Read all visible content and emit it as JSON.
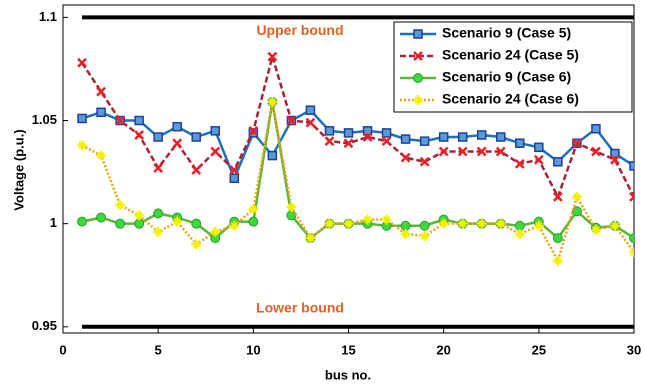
{
  "chart_data": {
    "type": "line",
    "xlabel": "bus no.",
    "ylabel": "Voltage (p.u.)",
    "annotations": [
      "Upper bound",
      "Lower bound"
    ],
    "bounds": [
      1.1,
      0.95
    ],
    "x": [
      1,
      2,
      3,
      4,
      5,
      6,
      7,
      8,
      9,
      10,
      11,
      12,
      13,
      14,
      15,
      16,
      17,
      18,
      19,
      20,
      21,
      22,
      23,
      24,
      25,
      26,
      27,
      28,
      29,
      30
    ],
    "series": [
      {
        "name": "Scenario 9 (Case 5)",
        "color": "#1f6fbf",
        "marker": "square",
        "values": [
          1.051,
          1.054,
          1.05,
          1.05,
          1.042,
          1.047,
          1.042,
          1.045,
          1.022,
          1.044,
          1.033,
          1.05,
          1.055,
          1.045,
          1.044,
          1.045,
          1.044,
          1.041,
          1.04,
          1.042,
          1.042,
          1.043,
          1.042,
          1.039,
          1.037,
          1.03,
          1.039,
          1.046,
          1.034,
          1.028
        ]
      },
      {
        "name": "Scenario 24 (Case 5)",
        "color": "#a5243a",
        "marker": "x",
        "values": [
          1.078,
          1.064,
          1.05,
          1.043,
          1.027,
          1.039,
          1.026,
          1.035,
          1.026,
          1.045,
          1.081,
          1.05,
          1.049,
          1.04,
          1.039,
          1.042,
          1.04,
          1.032,
          1.03,
          1.035,
          1.035,
          1.035,
          1.035,
          1.029,
          1.031,
          1.013,
          1.039,
          1.035,
          1.031,
          1.013
        ]
      },
      {
        "name": "Scenario 9 (Case 6)",
        "color": "#5bb536",
        "marker": "circle",
        "values": [
          1.001,
          1.003,
          1.0,
          1.0,
          1.005,
          1.003,
          1.0,
          0.993,
          1.001,
          1.001,
          1.059,
          1.004,
          0.993,
          1.0,
          1.0,
          1.0,
          0.999,
          0.999,
          0.999,
          1.002,
          1.0,
          1.0,
          1.0,
          0.999,
          1.001,
          0.993,
          1.006,
          0.998,
          0.999,
          0.993
        ]
      },
      {
        "name": "Scenario 24 (Case 6)",
        "color": "#e8a317",
        "marker": "star",
        "values": [
          1.038,
          1.033,
          1.009,
          1.004,
          0.996,
          1.001,
          0.99,
          0.996,
          0.999,
          1.007,
          1.059,
          1.008,
          0.993,
          1.0,
          1.0,
          1.002,
          1.002,
          0.995,
          0.994,
          1.0,
          1.0,
          1.0,
          1.0,
          0.995,
          0.999,
          0.982,
          1.013,
          0.997,
          0.999,
          0.986
        ]
      }
    ],
    "xlim": [
      0,
      30
    ],
    "xticks": [
      0,
      5,
      10,
      15,
      20,
      25,
      30
    ],
    "ylim": [
      0.947,
      1.106
    ],
    "yticks": [
      0.95,
      1,
      1.05,
      1.1
    ]
  }
}
